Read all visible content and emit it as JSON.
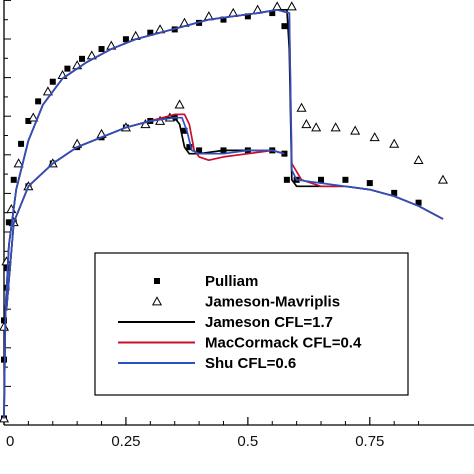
{
  "chart_data": {
    "type": "line",
    "title": "",
    "xlabel": "",
    "ylabel": "",
    "xlim": [
      0,
      0.9
    ],
    "ylim": [
      -0.2,
      1.1
    ],
    "grid": false,
    "legend_position": "bottom-right",
    "x_ticks": [
      {
        "value": 0,
        "label": "0"
      },
      {
        "value": 0.25,
        "label": "0.25"
      },
      {
        "value": 0.5,
        "label": "0.5"
      },
      {
        "value": 0.75,
        "label": "0.75"
      }
    ],
    "series": [
      {
        "name": "Pulliam",
        "marker": "square",
        "color": "#000000",
        "points": [
          [
            0.0,
            -0.18
          ],
          [
            0.0,
            0.0
          ],
          [
            0.0,
            0.12
          ],
          [
            0.005,
            0.28
          ],
          [
            0.01,
            0.42
          ],
          [
            0.02,
            0.55
          ],
          [
            0.035,
            0.66
          ],
          [
            0.05,
            0.73
          ],
          [
            0.07,
            0.79
          ],
          [
            0.1,
            0.85
          ],
          [
            0.13,
            0.89
          ],
          [
            0.16,
            0.92
          ],
          [
            0.2,
            0.95
          ],
          [
            0.25,
            0.98
          ],
          [
            0.3,
            1.0
          ],
          [
            0.35,
            1.01
          ],
          [
            0.4,
            1.03
          ],
          [
            0.45,
            1.04
          ],
          [
            0.5,
            1.05
          ],
          [
            0.55,
            1.06
          ],
          [
            0.575,
            1.02
          ],
          [
            0.58,
            0.55
          ],
          [
            0.6,
            0.55
          ],
          [
            0.65,
            0.55
          ],
          [
            0.7,
            0.55
          ],
          [
            0.75,
            0.54
          ],
          [
            0.8,
            0.51
          ],
          [
            0.85,
            0.48
          ],
          [
            0.005,
            0.22
          ],
          [
            0.02,
            0.42
          ],
          [
            0.05,
            0.53
          ],
          [
            0.1,
            0.6
          ],
          [
            0.15,
            0.65
          ],
          [
            0.2,
            0.68
          ],
          [
            0.25,
            0.71
          ],
          [
            0.3,
            0.73
          ],
          [
            0.35,
            0.74
          ],
          [
            0.37,
            0.7
          ],
          [
            0.38,
            0.65
          ],
          [
            0.4,
            0.64
          ],
          [
            0.45,
            0.64
          ],
          [
            0.5,
            0.64
          ],
          [
            0.55,
            0.64
          ],
          [
            0.575,
            0.63
          ]
        ]
      },
      {
        "name": "Jameson-Mavriplis",
        "marker": "triangle",
        "color": "#000000",
        "points": [
          [
            0.0,
            -0.18
          ],
          [
            0.0,
            0.1
          ],
          [
            0.005,
            0.3
          ],
          [
            0.015,
            0.46
          ],
          [
            0.03,
            0.6
          ],
          [
            0.06,
            0.74
          ],
          [
            0.09,
            0.82
          ],
          [
            0.12,
            0.87
          ],
          [
            0.15,
            0.9
          ],
          [
            0.18,
            0.93
          ],
          [
            0.22,
            0.96
          ],
          [
            0.27,
            0.99
          ],
          [
            0.32,
            1.01
          ],
          [
            0.37,
            1.03
          ],
          [
            0.42,
            1.05
          ],
          [
            0.47,
            1.06
          ],
          [
            0.52,
            1.07
          ],
          [
            0.56,
            1.08
          ],
          [
            0.59,
            1.08
          ],
          [
            0.61,
            0.77
          ],
          [
            0.62,
            0.72
          ],
          [
            0.64,
            0.71
          ],
          [
            0.68,
            0.71
          ],
          [
            0.72,
            0.7
          ],
          [
            0.76,
            0.68
          ],
          [
            0.8,
            0.66
          ],
          [
            0.85,
            0.61
          ],
          [
            0.9,
            0.55
          ],
          [
            0.02,
            0.42
          ],
          [
            0.05,
            0.53
          ],
          [
            0.1,
            0.6
          ],
          [
            0.15,
            0.66
          ],
          [
            0.2,
            0.69
          ],
          [
            0.25,
            0.71
          ],
          [
            0.29,
            0.72
          ],
          [
            0.32,
            0.73
          ],
          [
            0.34,
            0.74
          ],
          [
            0.36,
            0.78
          ]
        ]
      },
      {
        "name": "Jameson CFL=1.7",
        "color": "#000000",
        "points": [
          [
            0.0,
            -0.18
          ],
          [
            0.003,
            0.15
          ],
          [
            0.01,
            0.35
          ],
          [
            0.025,
            0.52
          ],
          [
            0.05,
            0.67
          ],
          [
            0.08,
            0.78
          ],
          [
            0.12,
            0.86
          ],
          [
            0.17,
            0.91
          ],
          [
            0.22,
            0.95
          ],
          [
            0.27,
            0.98
          ],
          [
            0.32,
            1.0
          ],
          [
            0.37,
            1.02
          ],
          [
            0.42,
            1.04
          ],
          [
            0.47,
            1.05
          ],
          [
            0.52,
            1.06
          ],
          [
            0.56,
            1.07
          ],
          [
            0.58,
            1.07
          ],
          [
            0.585,
            0.95
          ],
          [
            0.59,
            0.55
          ],
          [
            0.6,
            0.53
          ],
          [
            0.65,
            0.53
          ],
          [
            0.7,
            0.53
          ],
          [
            0.75,
            0.52
          ],
          [
            0.8,
            0.5
          ],
          [
            0.85,
            0.47
          ],
          [
            0.9,
            0.43
          ]
        ]
      },
      {
        "name": "MacCormack CFL=0.4",
        "color": "#c8102e",
        "points": [
          [
            0.0,
            -0.18
          ],
          [
            0.003,
            0.15
          ],
          [
            0.01,
            0.35
          ],
          [
            0.025,
            0.52
          ],
          [
            0.05,
            0.67
          ],
          [
            0.08,
            0.78
          ],
          [
            0.12,
            0.86
          ],
          [
            0.17,
            0.91
          ],
          [
            0.22,
            0.95
          ],
          [
            0.27,
            0.98
          ],
          [
            0.32,
            1.0
          ],
          [
            0.37,
            1.02
          ],
          [
            0.42,
            1.04
          ],
          [
            0.47,
            1.05
          ],
          [
            0.52,
            1.06
          ],
          [
            0.56,
            1.07
          ],
          [
            0.585,
            1.06
          ],
          [
            0.59,
            0.6
          ],
          [
            0.61,
            0.55
          ],
          [
            0.65,
            0.53
          ],
          [
            0.7,
            0.53
          ],
          [
            0.75,
            0.52
          ],
          [
            0.8,
            0.5
          ],
          [
            0.85,
            0.47
          ],
          [
            0.9,
            0.43
          ]
        ]
      },
      {
        "name": "Shu CFL=0.6",
        "color": "#2a52be",
        "points": [
          [
            0.0,
            -0.18
          ],
          [
            0.003,
            0.15
          ],
          [
            0.01,
            0.35
          ],
          [
            0.025,
            0.52
          ],
          [
            0.05,
            0.67
          ],
          [
            0.08,
            0.78
          ],
          [
            0.12,
            0.86
          ],
          [
            0.17,
            0.91
          ],
          [
            0.22,
            0.95
          ],
          [
            0.27,
            0.98
          ],
          [
            0.32,
            1.0
          ],
          [
            0.37,
            1.02
          ],
          [
            0.42,
            1.04
          ],
          [
            0.47,
            1.05
          ],
          [
            0.52,
            1.06
          ],
          [
            0.56,
            1.07
          ],
          [
            0.585,
            1.06
          ],
          [
            0.59,
            0.58
          ],
          [
            0.6,
            0.55
          ],
          [
            0.65,
            0.54
          ],
          [
            0.7,
            0.53
          ],
          [
            0.75,
            0.52
          ],
          [
            0.8,
            0.5
          ],
          [
            0.85,
            0.47
          ],
          [
            0.9,
            0.43
          ]
        ]
      },
      {
        "name": "",
        "color": "#000000",
        "legend": false,
        "points": [
          [
            0.005,
            0.15
          ],
          [
            0.02,
            0.42
          ],
          [
            0.05,
            0.53
          ],
          [
            0.1,
            0.6
          ],
          [
            0.15,
            0.65
          ],
          [
            0.2,
            0.68
          ],
          [
            0.25,
            0.71
          ],
          [
            0.3,
            0.73
          ],
          [
            0.33,
            0.74
          ],
          [
            0.35,
            0.74
          ],
          [
            0.36,
            0.72
          ],
          [
            0.37,
            0.65
          ],
          [
            0.38,
            0.63
          ],
          [
            0.4,
            0.63
          ],
          [
            0.45,
            0.64
          ],
          [
            0.5,
            0.64
          ],
          [
            0.55,
            0.64
          ],
          [
            0.575,
            0.63
          ]
        ]
      },
      {
        "name": "",
        "color": "#c8102e",
        "legend": false,
        "points": [
          [
            0.005,
            0.15
          ],
          [
            0.02,
            0.42
          ],
          [
            0.05,
            0.53
          ],
          [
            0.1,
            0.6
          ],
          [
            0.15,
            0.65
          ],
          [
            0.2,
            0.68
          ],
          [
            0.25,
            0.71
          ],
          [
            0.3,
            0.73
          ],
          [
            0.35,
            0.75
          ],
          [
            0.37,
            0.75
          ],
          [
            0.38,
            0.72
          ],
          [
            0.39,
            0.64
          ],
          [
            0.4,
            0.62
          ],
          [
            0.42,
            0.61
          ],
          [
            0.45,
            0.62
          ],
          [
            0.5,
            0.63
          ],
          [
            0.55,
            0.64
          ],
          [
            0.575,
            0.63
          ]
        ]
      },
      {
        "name": "",
        "color": "#2a52be",
        "legend": false,
        "points": [
          [
            0.005,
            0.15
          ],
          [
            0.02,
            0.42
          ],
          [
            0.05,
            0.53
          ],
          [
            0.1,
            0.6
          ],
          [
            0.15,
            0.65
          ],
          [
            0.2,
            0.68
          ],
          [
            0.25,
            0.71
          ],
          [
            0.3,
            0.73
          ],
          [
            0.35,
            0.74
          ],
          [
            0.365,
            0.74
          ],
          [
            0.375,
            0.7
          ],
          [
            0.385,
            0.64
          ],
          [
            0.4,
            0.63
          ],
          [
            0.45,
            0.63
          ],
          [
            0.5,
            0.64
          ],
          [
            0.55,
            0.64
          ],
          [
            0.575,
            0.63
          ]
        ]
      }
    ],
    "legend": [
      {
        "label": "Pulliam",
        "marker": "square",
        "color": "#000000"
      },
      {
        "label": "Jameson-Mavriplis",
        "marker": "triangle",
        "color": "#000000"
      },
      {
        "label": "Jameson CFL=1.7",
        "line": true,
        "color": "#000000"
      },
      {
        "label": "MacCormack CFL=0.4",
        "line": true,
        "color": "#c8102e"
      },
      {
        "label": "Shu CFL=0.6",
        "line": true,
        "color": "#2a52be"
      }
    ]
  }
}
